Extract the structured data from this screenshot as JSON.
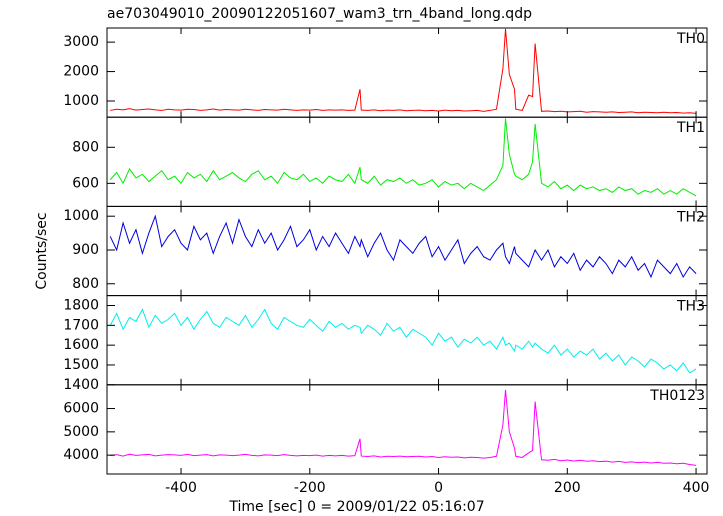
{
  "chart_data": [
    {
      "type": "line",
      "title": "ae703049010_20090122051607_wam3_trn_4band_long.qdp",
      "name": "TH0",
      "color": "#ff0000",
      "x": [
        -510,
        -500,
        -490,
        -480,
        -470,
        -460,
        -450,
        -440,
        -430,
        -420,
        -410,
        -400,
        -390,
        -380,
        -370,
        -360,
        -350,
        -340,
        -330,
        -320,
        -310,
        -300,
        -290,
        -280,
        -270,
        -260,
        -250,
        -240,
        -230,
        -220,
        -210,
        -200,
        -190,
        -180,
        -170,
        -160,
        -150,
        -140,
        -130,
        -122,
        -120,
        -110,
        -100,
        -90,
        -80,
        -70,
        -60,
        -50,
        -40,
        -30,
        -20,
        -10,
        0,
        10,
        20,
        30,
        40,
        50,
        60,
        70,
        80,
        90,
        100,
        104,
        110,
        118,
        120,
        130,
        140,
        146,
        150,
        160,
        170,
        180,
        190,
        200,
        210,
        220,
        230,
        240,
        250,
        260,
        270,
        280,
        290,
        300,
        310,
        320,
        330,
        340,
        350,
        360,
        370,
        380,
        390,
        400
      ],
      "values": [
        680,
        720,
        700,
        740,
        690,
        710,
        730,
        700,
        680,
        720,
        700,
        690,
        720,
        710,
        680,
        700,
        730,
        690,
        710,
        700,
        690,
        720,
        700,
        680,
        710,
        700,
        690,
        720,
        700,
        680,
        700,
        690,
        710,
        680,
        700,
        690,
        700,
        680,
        690,
        1400,
        690,
        680,
        700,
        670,
        690,
        680,
        700,
        670,
        680,
        690,
        670,
        680,
        660,
        690,
        670,
        680,
        660,
        670,
        680,
        650,
        680,
        720,
        2100,
        3450,
        1900,
        1400,
        720,
        680,
        1200,
        1150,
        2950,
        650,
        660,
        640,
        650,
        630,
        640,
        650,
        620,
        640,
        630,
        620,
        630,
        610,
        620,
        630,
        600,
        620,
        610,
        600,
        620,
        600,
        610,
        590,
        600,
        580
      ],
      "xlim": [
        -515,
        417
      ],
      "xticks": [
        -400,
        -200,
        0,
        200,
        400
      ],
      "ylim": [
        450,
        3480
      ],
      "yticks": [
        1000,
        2000,
        3000
      ]
    },
    {
      "type": "line",
      "name": "TH1",
      "color": "#00ee00",
      "x": [
        -510,
        -500,
        -490,
        -480,
        -470,
        -460,
        -450,
        -440,
        -430,
        -420,
        -410,
        -400,
        -390,
        -380,
        -370,
        -360,
        -350,
        -340,
        -330,
        -320,
        -310,
        -300,
        -290,
        -280,
        -270,
        -260,
        -250,
        -240,
        -230,
        -220,
        -210,
        -200,
        -190,
        -180,
        -170,
        -160,
        -150,
        -140,
        -130,
        -122,
        -120,
        -110,
        -100,
        -90,
        -80,
        -70,
        -60,
        -50,
        -40,
        -30,
        -20,
        -10,
        0,
        10,
        20,
        30,
        40,
        50,
        60,
        70,
        80,
        90,
        100,
        104,
        110,
        118,
        120,
        130,
        140,
        146,
        150,
        160,
        170,
        180,
        190,
        200,
        210,
        220,
        230,
        240,
        250,
        260,
        270,
        280,
        290,
        300,
        310,
        320,
        330,
        340,
        350,
        360,
        370,
        380,
        390,
        400
      ],
      "values": [
        620,
        660,
        600,
        680,
        630,
        650,
        610,
        640,
        670,
        620,
        640,
        600,
        660,
        630,
        650,
        610,
        670,
        620,
        640,
        660,
        630,
        610,
        650,
        670,
        620,
        640,
        600,
        660,
        630,
        620,
        650,
        610,
        630,
        600,
        640,
        620,
        610,
        650,
        600,
        690,
        620,
        600,
        640,
        590,
        620,
        610,
        630,
        600,
        620,
        590,
        600,
        620,
        580,
        610,
        590,
        600,
        570,
        600,
        580,
        560,
        590,
        620,
        700,
        960,
        760,
        650,
        640,
        620,
        650,
        720,
        930,
        600,
        580,
        610,
        570,
        590,
        560,
        590,
        570,
        580,
        560,
        570,
        550,
        580,
        560,
        570,
        540,
        560,
        550,
        570,
        540,
        560,
        540,
        570,
        550,
        530
      ],
      "xlim": [
        -515,
        417
      ],
      "xticks": [
        -400,
        -200,
        0,
        200,
        400
      ],
      "ylim": [
        472,
        967
      ],
      "yticks": [
        600,
        800
      ]
    },
    {
      "type": "line",
      "name": "TH2",
      "color": "#0000dd",
      "ylabel": "Counts/sec",
      "x": [
        -510,
        -500,
        -490,
        -480,
        -470,
        -460,
        -450,
        -440,
        -430,
        -420,
        -410,
        -400,
        -390,
        -380,
        -370,
        -360,
        -350,
        -340,
        -330,
        -320,
        -310,
        -300,
        -290,
        -280,
        -270,
        -260,
        -250,
        -240,
        -230,
        -220,
        -210,
        -200,
        -190,
        -180,
        -170,
        -160,
        -150,
        -140,
        -130,
        -122,
        -120,
        -110,
        -100,
        -90,
        -80,
        -70,
        -60,
        -50,
        -40,
        -30,
        -20,
        -10,
        0,
        10,
        20,
        30,
        40,
        50,
        60,
        70,
        80,
        90,
        100,
        104,
        110,
        118,
        120,
        130,
        140,
        146,
        150,
        160,
        170,
        180,
        190,
        200,
        210,
        220,
        230,
        240,
        250,
        260,
        270,
        280,
        290,
        300,
        310,
        320,
        330,
        340,
        350,
        360,
        370,
        380,
        390,
        400
      ],
      "values": [
        940,
        900,
        980,
        920,
        960,
        890,
        950,
        1000,
        910,
        940,
        960,
        920,
        900,
        970,
        930,
        950,
        890,
        940,
        980,
        920,
        990,
        940,
        910,
        960,
        920,
        950,
        900,
        930,
        970,
        910,
        930,
        960,
        900,
        940,
        910,
        950,
        920,
        890,
        940,
        910,
        930,
        880,
        920,
        950,
        900,
        870,
        930,
        910,
        890,
        920,
        940,
        880,
        910,
        870,
        900,
        930,
        860,
        890,
        910,
        880,
        870,
        900,
        920,
        880,
        860,
        910,
        890,
        870,
        850,
        880,
        900,
        870,
        900,
        850,
        880,
        860,
        890,
        840,
        870,
        850,
        880,
        860,
        830,
        870,
        850,
        880,
        840,
        860,
        820,
        870,
        850,
        830,
        860,
        820,
        850,
        830
      ],
      "xlim": [
        -515,
        417
      ],
      "xticks": [
        -400,
        -200,
        0,
        200,
        400
      ],
      "ylim": [
        765,
        1029
      ],
      "yticks": [
        800,
        900,
        1000
      ]
    },
    {
      "type": "line",
      "name": "TH3",
      "color": "#00eeee",
      "x": [
        -510,
        -500,
        -490,
        -480,
        -470,
        -460,
        -450,
        -440,
        -430,
        -420,
        -410,
        -400,
        -390,
        -380,
        -370,
        -360,
        -350,
        -340,
        -330,
        -320,
        -310,
        -300,
        -290,
        -280,
        -270,
        -260,
        -250,
        -240,
        -230,
        -220,
        -210,
        -200,
        -190,
        -180,
        -170,
        -160,
        -150,
        -140,
        -130,
        -122,
        -120,
        -110,
        -100,
        -90,
        -80,
        -70,
        -60,
        -50,
        -40,
        -30,
        -20,
        -10,
        0,
        10,
        20,
        30,
        40,
        50,
        60,
        70,
        80,
        90,
        100,
        104,
        110,
        118,
        120,
        130,
        140,
        146,
        150,
        160,
        170,
        180,
        190,
        200,
        210,
        220,
        230,
        240,
        250,
        260,
        270,
        280,
        290,
        300,
        310,
        320,
        330,
        340,
        350,
        360,
        370,
        380,
        390,
        400
      ],
      "values": [
        1700,
        1760,
        1680,
        1740,
        1720,
        1780,
        1690,
        1750,
        1710,
        1730,
        1760,
        1700,
        1740,
        1680,
        1730,
        1770,
        1710,
        1690,
        1740,
        1720,
        1700,
        1750,
        1690,
        1730,
        1780,
        1710,
        1680,
        1740,
        1720,
        1700,
        1690,
        1730,
        1700,
        1670,
        1720,
        1690,
        1710,
        1680,
        1700,
        1690,
        1660,
        1700,
        1680,
        1650,
        1710,
        1670,
        1690,
        1640,
        1680,
        1660,
        1640,
        1600,
        1660,
        1620,
        1640,
        1590,
        1630,
        1610,
        1640,
        1600,
        1620,
        1580,
        1640,
        1600,
        1610,
        1570,
        1600,
        1580,
        1620,
        1590,
        1610,
        1580,
        1560,
        1600,
        1550,
        1580,
        1540,
        1570,
        1550,
        1580,
        1530,
        1560,
        1520,
        1550,
        1500,
        1540,
        1520,
        1490,
        1530,
        1510,
        1480,
        1500,
        1470,
        1510,
        1460,
        1480
      ],
      "xlim": [
        -515,
        417
      ],
      "xticks": [
        -400,
        -200,
        0,
        200,
        400
      ],
      "ylim": [
        1400,
        1850
      ],
      "yticks": [
        1400,
        1500,
        1600,
        1700,
        1800
      ]
    },
    {
      "type": "line",
      "name": "TH0123",
      "color": "#ff00ff",
      "xlabel": "Time [sec] 0 = 2009/01/22 05:16:07",
      "x": [
        -510,
        -500,
        -490,
        -480,
        -470,
        -460,
        -450,
        -440,
        -430,
        -420,
        -410,
        -400,
        -390,
        -380,
        -370,
        -360,
        -350,
        -340,
        -330,
        -320,
        -310,
        -300,
        -290,
        -280,
        -270,
        -260,
        -250,
        -240,
        -230,
        -220,
        -210,
        -200,
        -190,
        -180,
        -170,
        -160,
        -150,
        -140,
        -130,
        -122,
        -120,
        -110,
        -100,
        -90,
        -80,
        -70,
        -60,
        -50,
        -40,
        -30,
        -20,
        -10,
        0,
        10,
        20,
        30,
        40,
        50,
        60,
        70,
        80,
        90,
        100,
        104,
        110,
        118,
        120,
        130,
        140,
        146,
        150,
        160,
        170,
        180,
        190,
        200,
        210,
        220,
        230,
        240,
        250,
        260,
        270,
        280,
        290,
        300,
        310,
        320,
        330,
        340,
        350,
        360,
        370,
        380,
        390,
        400
      ],
      "values": [
        3980,
        4020,
        3960,
        4040,
        3990,
        4010,
        4030,
        3970,
        4000,
        4020,
        4010,
        3990,
        4030,
        3980,
        4000,
        4020,
        3970,
        4010,
        4000,
        3980,
        4000,
        4030,
        3990,
        3970,
        4010,
        4000,
        3980,
        4020,
        3990,
        3970,
        3990,
        3980,
        4000,
        3960,
        3990,
        3970,
        3990,
        3960,
        3980,
        4700,
        3960,
        3940,
        3970,
        3920,
        3950,
        3940,
        3960,
        3930,
        3940,
        3950,
        3920,
        3940,
        3900,
        3930,
        3910,
        3920,
        3880,
        3910,
        3900,
        3870,
        3900,
        3950,
        5300,
        6800,
        5000,
        4300,
        3950,
        3900,
        4100,
        4200,
        6300,
        3800,
        3780,
        3820,
        3760,
        3790,
        3750,
        3780,
        3740,
        3760,
        3720,
        3740,
        3700,
        3730,
        3690,
        3710,
        3680,
        3700,
        3660,
        3690,
        3650,
        3660,
        3630,
        3650,
        3600,
        3560
      ],
      "xlim": [
        -515,
        417
      ],
      "xticks": [
        -400,
        -200,
        0,
        200,
        400
      ],
      "ylim": [
        3190,
        7020
      ],
      "yticks": [
        4000,
        5000,
        6000
      ]
    }
  ]
}
